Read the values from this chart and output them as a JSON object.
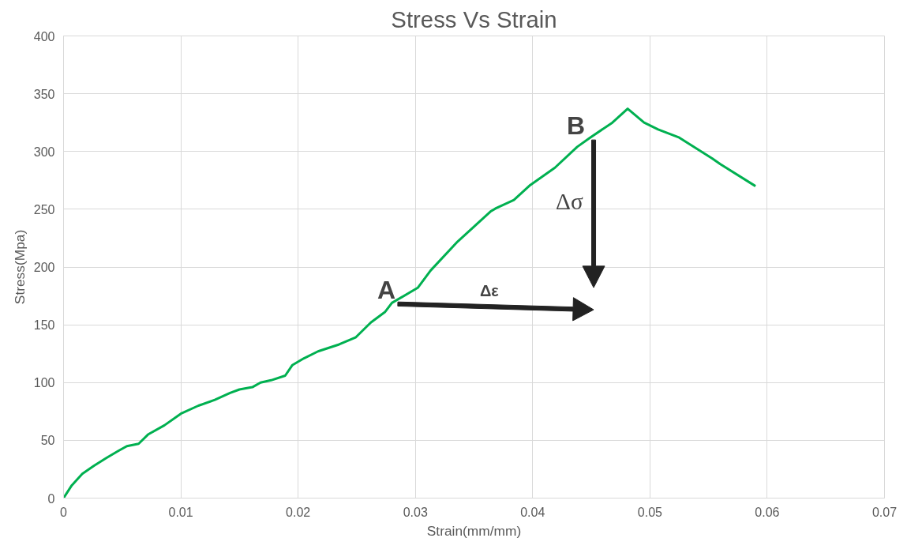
{
  "chart_data": {
    "type": "line",
    "title": "Stress Vs Strain",
    "xlabel": "Strain(mm/mm)",
    "ylabel": "Stress(Mpa)",
    "x": [
      0,
      0.0007,
      0.0016,
      0.0026,
      0.0037,
      0.0047,
      0.0054,
      0.0064,
      0.0072,
      0.0086,
      0.01,
      0.0115,
      0.0129,
      0.0142,
      0.015,
      0.0161,
      0.0168,
      0.0177,
      0.0189,
      0.0195,
      0.0205,
      0.0217,
      0.0235,
      0.0249,
      0.0262,
      0.0274,
      0.028,
      0.0302,
      0.0313,
      0.0336,
      0.0364,
      0.0369,
      0.0384,
      0.0398,
      0.0419,
      0.0438,
      0.0449,
      0.0468,
      0.0481,
      0.0495,
      0.0507,
      0.0525,
      0.0553,
      0.056,
      0.059
    ],
    "series": [
      {
        "color": "#00b050",
        "values": [
          0,
          11,
          21,
          28,
          35,
          41,
          45,
          47,
          55,
          63,
          73,
          80,
          85,
          91,
          94,
          96,
          100,
          102,
          106,
          115,
          121,
          127,
          133,
          139,
          152,
          161,
          169,
          182,
          197,
          222,
          248,
          251,
          258,
          271,
          286,
          304,
          312,
          325,
          337,
          325,
          319,
          312,
          294,
          289,
          270
        ]
      }
    ],
    "xlim": [
      0,
      0.07
    ],
    "xticks": [
      0,
      0.01,
      0.02,
      0.03,
      0.04,
      0.05,
      0.06,
      0.07
    ],
    "ylim": [
      0,
      400
    ],
    "yticks": [
      0,
      50,
      100,
      150,
      200,
      250,
      300,
      350,
      400
    ],
    "grid": true,
    "marker": "none",
    "line_style": "solid",
    "annotations": [
      {
        "text": "A",
        "x": 0.0285,
        "y": 168
      },
      {
        "text": "B",
        "x": 0.0452,
        "y": 310
      },
      "Δε",
      "Δσ"
    ]
  }
}
